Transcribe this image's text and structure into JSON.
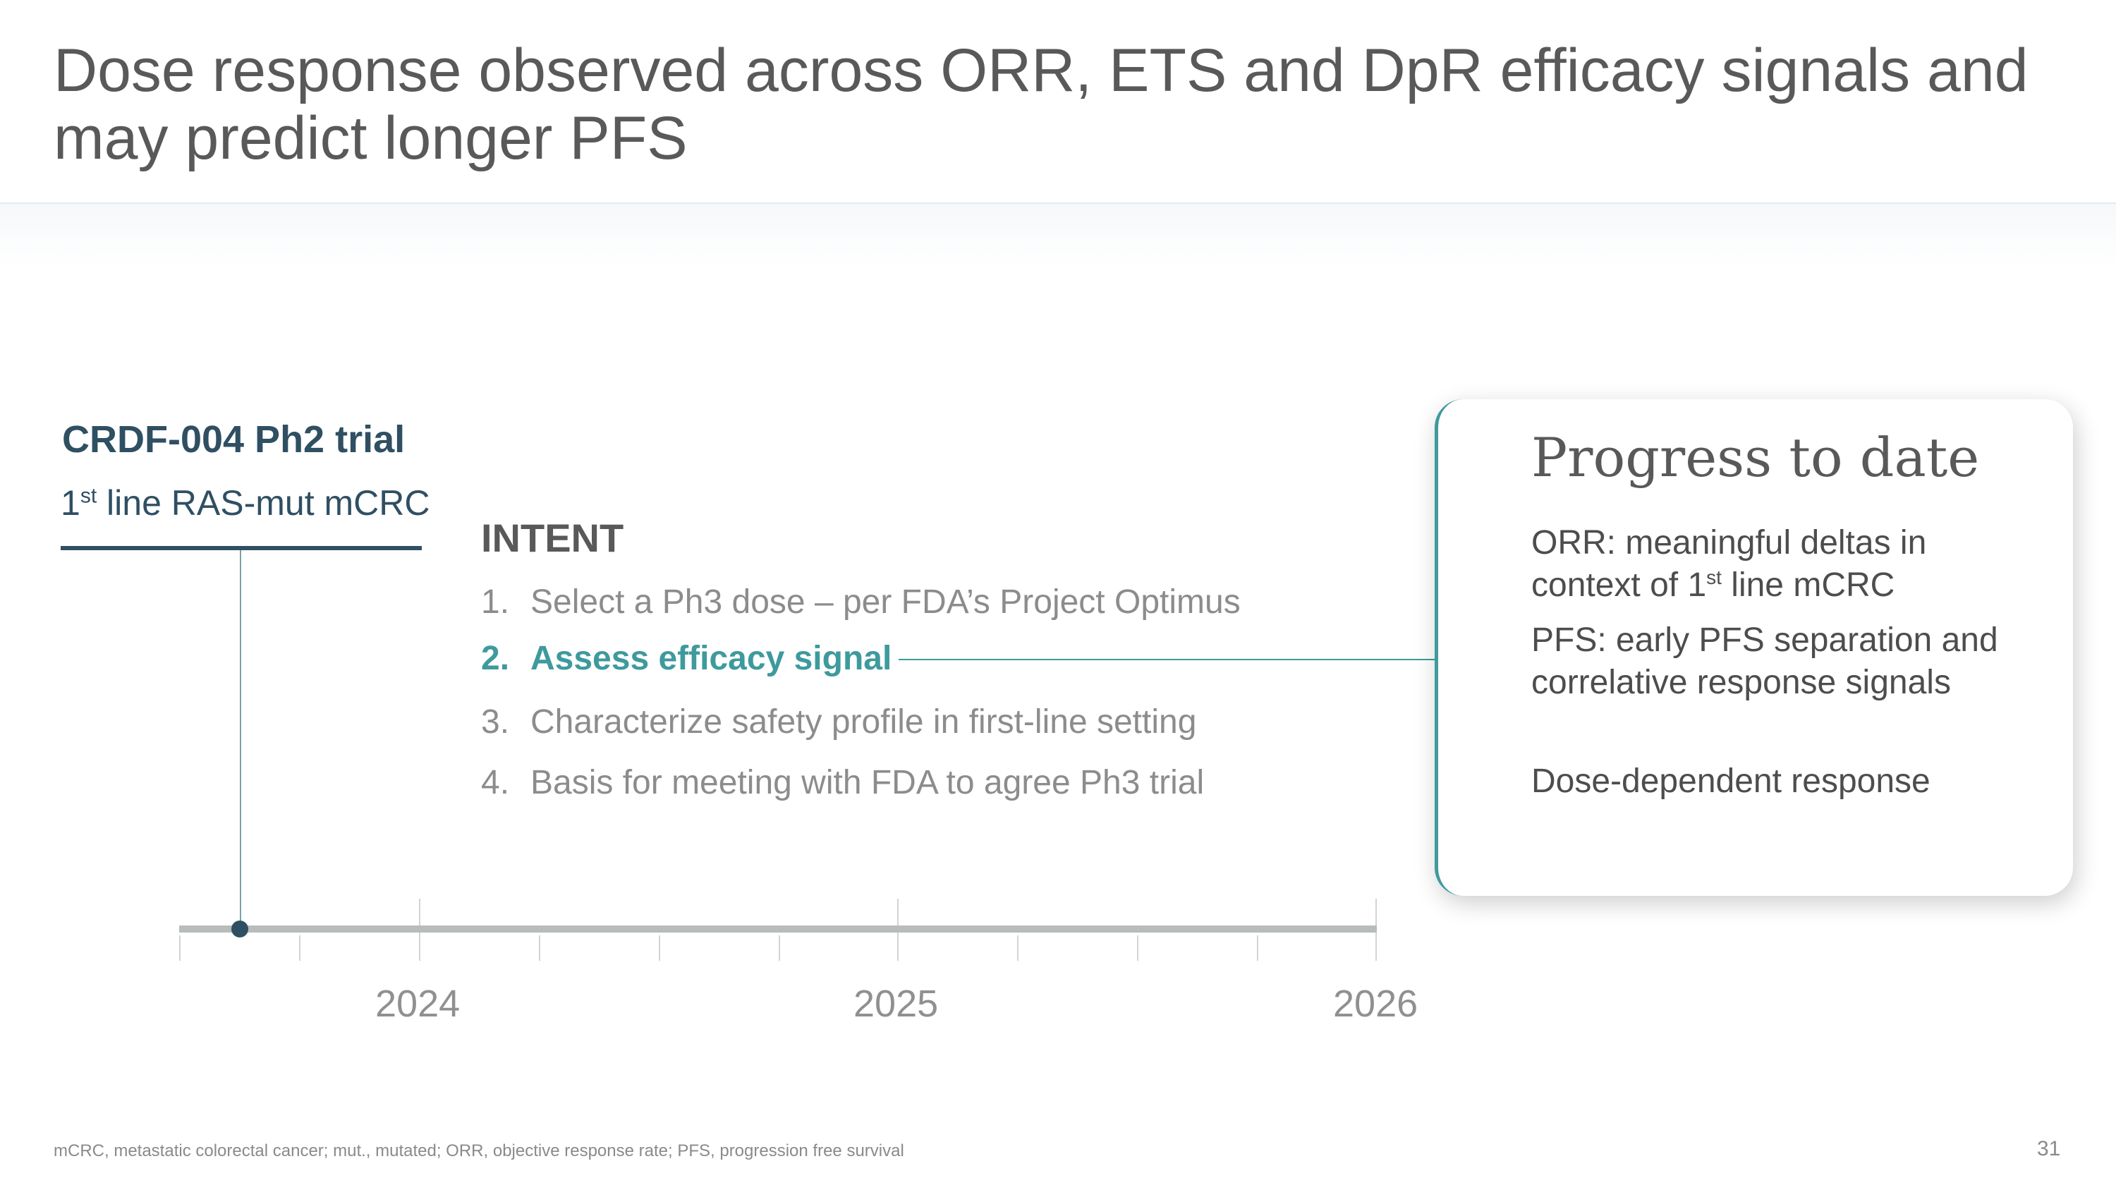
{
  "slide": {
    "title": "Dose response observed across ORR, ETS and DpR efficacy signals and may predict longer PFS",
    "footnote": "mCRC, metastatic colorectal cancer; mut., mutated; ORR, objective response rate; PFS, progression free survival",
    "page_number": "31"
  },
  "trial": {
    "name": "CRDF-004 Ph2 trial",
    "line_number": "1",
    "line_suffix": "st",
    "line_text": " line RAS-mut mCRC"
  },
  "intent": {
    "heading": "INTENT",
    "items": [
      {
        "number": "1.",
        "text": "Select a Ph3 dose – per FDA’s Project Optimus"
      },
      {
        "number": "2.",
        "text": "Assess efficacy signal"
      },
      {
        "number": "3.",
        "text": "Characterize safety profile in first-line setting"
      },
      {
        "number": "4.",
        "text": "Basis for meeting with FDA to agree Ph3 trial"
      }
    ],
    "highlighted_item": 2
  },
  "timeline": {
    "years": [
      "2024",
      "2025",
      "2026"
    ],
    "colors": {
      "bar": "#b8bcbb",
      "marker": "#2f4f63"
    }
  },
  "progress": {
    "title": "Progress to date",
    "items": [
      {
        "before": "ORR: meaningful deltas in context of 1",
        "sup": "st",
        "after": " line mCRC"
      },
      {
        "text": "PFS: early PFS separation and correlative response signals"
      },
      {
        "text": "Dose-dependent response"
      }
    ]
  },
  "colors": {
    "title": "#595959",
    "trial": "#2f4f63",
    "accent": "#3e9a9d",
    "muted_text": "#8c8c8c"
  }
}
